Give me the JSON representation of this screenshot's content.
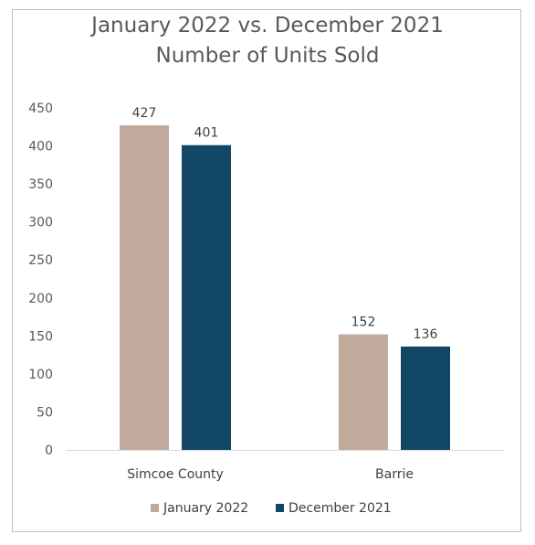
{
  "chart_data": {
    "type": "bar",
    "title": [
      "January 2022 vs. December 2021",
      "Number of Units Sold"
    ],
    "categories": [
      "Simcoe County",
      "Barrie"
    ],
    "series": [
      {
        "name": "January 2022",
        "values": [
          427,
          152
        ],
        "color": "#bfaa9b"
      },
      {
        "name": "December 2021",
        "values": [
          401,
          136
        ],
        "color": "#134766"
      }
    ],
    "ylim": [
      0,
      450
    ],
    "yticks": [
      "0",
      "50",
      "100",
      "150",
      "200",
      "250",
      "300",
      "350",
      "400",
      "450"
    ],
    "data_labels": true,
    "legend_position": "bottom",
    "grid": false
  }
}
